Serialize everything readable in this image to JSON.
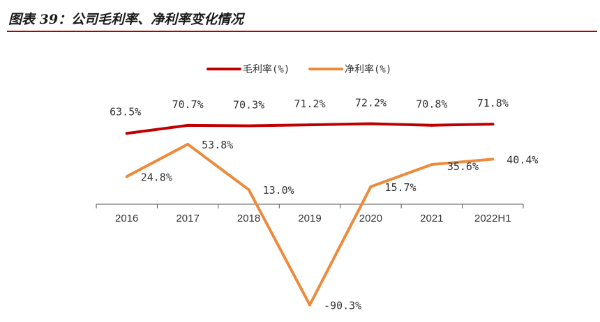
{
  "figure": {
    "title": "图表 39：公司毛利率、净利率变化情况"
  },
  "colors": {
    "gross": "#c00000",
    "net": "#ed8a3b",
    "accent": "#b30000",
    "axis": "#555555"
  },
  "chart_data": {
    "type": "line",
    "categories": [
      "2016",
      "2017",
      "2018",
      "2019",
      "2020",
      "2021",
      "2022H1"
    ],
    "series": [
      {
        "name": "毛利率(%)",
        "values": [
          63.5,
          70.7,
          70.3,
          71.2,
          72.2,
          70.8,
          71.8
        ],
        "labels": [
          "63.5%",
          "70.7%",
          "70.3%",
          "71.2%",
          "72.2%",
          "70.8%",
          "71.8%"
        ]
      },
      {
        "name": "净利率(%)",
        "values": [
          24.8,
          53.8,
          13.0,
          -90.3,
          15.7,
          35.6,
          40.4
        ],
        "labels": [
          "24.8%",
          "53.8%",
          "13.0%",
          "-90.3%",
          "15.7%",
          "35.6%",
          "40.4%"
        ]
      }
    ],
    "xlabel": "",
    "ylabel": "",
    "ylim": [
      -95,
      92
    ],
    "legend": "top-center",
    "grid": false
  }
}
